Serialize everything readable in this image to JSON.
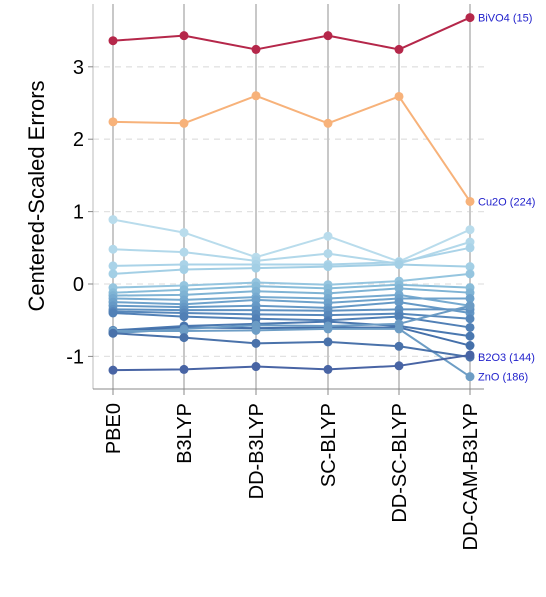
{
  "chart_data": {
    "type": "line",
    "title": "",
    "xlabel": "",
    "ylabel": "Centered-Scaled Errors",
    "ylim": [
      -1.45,
      3.85
    ],
    "yticks": [
      -1,
      0,
      1,
      2,
      3
    ],
    "ytick_labels": [
      "-1",
      "0",
      "1",
      "2",
      "3"
    ],
    "grid": "horizontal dashed",
    "categories": [
      "PBE0",
      "B3LYP",
      "DD-B3LYP",
      "SC-BLYP",
      "DD-SC-BLYP",
      "DD-CAM-B3LYP"
    ],
    "series": [
      {
        "values": [
          3.36,
          3.43,
          3.24,
          3.43,
          3.24,
          3.68
        ],
        "color": "#b5274a"
      },
      {
        "values": [
          2.24,
          2.22,
          2.6,
          2.22,
          2.59,
          1.14
        ],
        "color": "#f7b27a"
      },
      {
        "values": [
          0.89,
          0.71,
          0.37,
          0.66,
          0.31,
          0.75
        ],
        "color": "#b9dcec"
      },
      {
        "values": [
          0.48,
          0.44,
          0.32,
          0.42,
          0.28,
          0.58
        ],
        "color": "#b2d8ea"
      },
      {
        "values": [
          0.25,
          0.27,
          0.27,
          0.27,
          0.3,
          0.5
        ],
        "color": "#aad3e8"
      },
      {
        "values": [
          0.14,
          0.2,
          0.22,
          0.24,
          0.27,
          0.24
        ],
        "color": "#a3cfe5"
      },
      {
        "values": [
          -0.05,
          -0.02,
          0.02,
          -0.01,
          0.04,
          0.14
        ],
        "color": "#95c5df"
      },
      {
        "values": [
          -0.12,
          -0.08,
          -0.03,
          -0.06,
          -0.01,
          -0.05
        ],
        "color": "#88bcd9"
      },
      {
        "values": [
          -0.16,
          -0.15,
          -0.1,
          -0.13,
          -0.06,
          -0.12
        ],
        "color": "#7fb3d4"
      },
      {
        "values": [
          -0.2,
          -0.22,
          -0.18,
          -0.2,
          -0.15,
          -0.3
        ],
        "color": "#76aad0"
      },
      {
        "values": [
          -0.25,
          -0.28,
          -0.22,
          -0.26,
          -0.2,
          -0.2
        ],
        "color": "#6ea2cb"
      },
      {
        "values": [
          -0.3,
          -0.32,
          -0.3,
          -0.33,
          -0.25,
          -0.4
        ],
        "color": "#6699c6"
      },
      {
        "values": [
          -0.35,
          -0.36,
          -0.36,
          -0.37,
          -0.35,
          -0.35
        ],
        "color": "#5f91c1"
      },
      {
        "values": [
          -0.38,
          -0.4,
          -0.42,
          -0.43,
          -0.41,
          -0.48
        ],
        "color": "#5888bb"
      },
      {
        "values": [
          -0.4,
          -0.45,
          -0.48,
          -0.5,
          -0.45,
          -0.6
        ],
        "color": "#5180b6"
      },
      {
        "values": [
          -0.64,
          -0.58,
          -0.55,
          -0.52,
          -0.58,
          -0.72
        ],
        "color": "#4a78b0"
      },
      {
        "values": [
          -0.66,
          -0.6,
          -0.61,
          -0.6,
          -0.6,
          -0.85
        ],
        "color": "#4570aa"
      },
      {
        "values": [
          -0.68,
          -0.62,
          -0.57,
          -0.58,
          -0.55,
          -0.3
        ],
        "color": "#6b9bc4"
      },
      {
        "values": [
          -0.65,
          -0.65,
          -0.64,
          -0.62,
          -0.62,
          -1.28
        ],
        "color": "#6d9dc5"
      },
      {
        "values": [
          -0.68,
          -0.74,
          -0.82,
          -0.8,
          -0.86,
          -1.01
        ],
        "color": "#4a72aa"
      },
      {
        "values": [
          -1.19,
          -1.18,
          -1.14,
          -1.18,
          -1.13,
          -0.98
        ],
        "color": "#4864a4"
      }
    ],
    "annotations": [
      {
        "text": "BiVO4 (15)",
        "x": "DD-CAM-B3LYP",
        "y": 3.68
      },
      {
        "text": "Cu2O (224)",
        "x": "DD-CAM-B3LYP",
        "y": 1.14
      },
      {
        "text": "B2O3 (144)",
        "x": "DD-CAM-B3LYP",
        "y": -1.01
      },
      {
        "text": "ZnO (186)",
        "x": "DD-CAM-B3LYP",
        "y": -1.28
      }
    ]
  }
}
